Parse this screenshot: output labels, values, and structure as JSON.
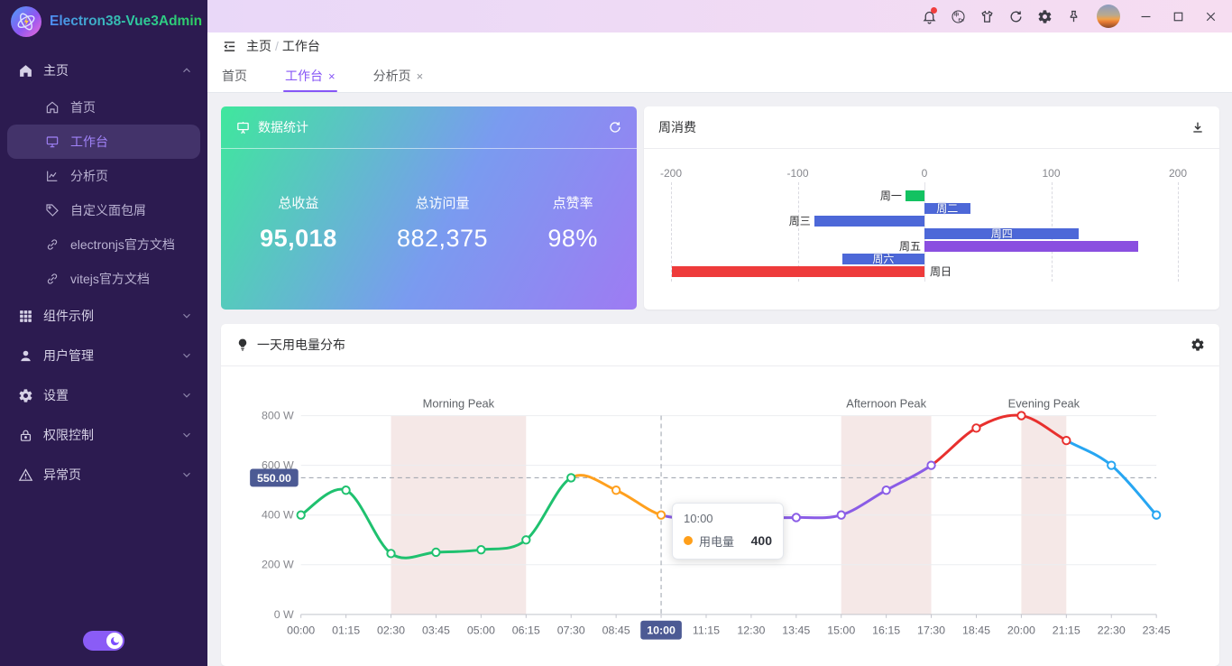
{
  "app": {
    "title": "Electron38-Vue3Admin"
  },
  "titlebar": {
    "icons": [
      {
        "id": "bell",
        "badge": true
      },
      {
        "id": "translate",
        "badge": false
      },
      {
        "id": "theme-shirt",
        "badge": false
      },
      {
        "id": "refresh",
        "badge": false
      },
      {
        "id": "settings",
        "badge": false
      },
      {
        "id": "pin",
        "badge": false
      }
    ],
    "window_controls": [
      "minimize",
      "maximize",
      "close"
    ]
  },
  "sidebar": {
    "groups": [
      {
        "id": "home",
        "label": "主页",
        "icon": "home-filled",
        "expanded": true,
        "children": [
          {
            "id": "overview",
            "label": "首页",
            "icon": "house",
            "active": false
          },
          {
            "id": "workbench",
            "label": "工作台",
            "icon": "monitor",
            "active": true
          },
          {
            "id": "analysis",
            "label": "分析页",
            "icon": "chart",
            "active": false
          },
          {
            "id": "custom-breadcrumb",
            "label": "自定义面包屑",
            "icon": "tag",
            "active": false
          },
          {
            "id": "electron-docs",
            "label": "electronjs官方文档",
            "icon": "link",
            "active": false
          },
          {
            "id": "vite-docs",
            "label": "vitejs官方文档",
            "icon": "link",
            "active": false
          }
        ]
      },
      {
        "id": "components",
        "label": "组件示例",
        "icon": "grid",
        "expanded": false,
        "children": []
      },
      {
        "id": "users",
        "label": "用户管理",
        "icon": "user",
        "expanded": false,
        "children": []
      },
      {
        "id": "settings",
        "label": "设置",
        "icon": "gear",
        "expanded": false,
        "children": []
      },
      {
        "id": "permissions",
        "label": "权限控制",
        "icon": "lock",
        "expanded": false,
        "children": []
      },
      {
        "id": "exception",
        "label": "异常页",
        "icon": "warning",
        "expanded": false,
        "children": []
      }
    ],
    "theme_toggle_on": true
  },
  "breadcrumb": {
    "items": [
      "主页",
      "工作台"
    ],
    "separator": "/"
  },
  "tabs": [
    {
      "id": "overview",
      "label": "首页",
      "closable": false,
      "active": false
    },
    {
      "id": "workbench",
      "label": "工作台",
      "closable": true,
      "active": true
    },
    {
      "id": "analysis",
      "label": "分析页",
      "closable": true,
      "active": false
    }
  ],
  "stats_card": {
    "title": "数据统计",
    "items": [
      {
        "label": "总收益",
        "value": "95,018",
        "bold": true
      },
      {
        "label": "总访问量",
        "value": "882,375",
        "bold": false
      },
      {
        "label": "点赞率",
        "value": "98%",
        "bold": false
      }
    ]
  },
  "chart_data": [
    {
      "type": "bar",
      "title": "周消费",
      "orientation": "horizontal",
      "categories": [
        "周一",
        "周二",
        "周三",
        "周四",
        "周五",
        "周六",
        "周日"
      ],
      "values": [
        -15,
        36,
        -87,
        122,
        169,
        -65,
        -199
      ],
      "colors": [
        "#12c261",
        "#4d68d8",
        "#4d68d8",
        "#4d68d8",
        "#8a4fe0",
        "#4d68d8",
        "#ee3b3b"
      ],
      "label_positions": [
        "left",
        "inside",
        "left",
        "inside",
        "left",
        "inside",
        "right"
      ],
      "xlim": [
        -200,
        200
      ],
      "ticks": [
        -200,
        -100,
        0,
        100,
        200
      ],
      "grid": "dashed-vertical"
    },
    {
      "type": "line",
      "title": "一天用电量分布",
      "series_name": "用电量",
      "x": [
        "00:00",
        "01:15",
        "02:30",
        "03:45",
        "05:00",
        "06:15",
        "07:30",
        "08:45",
        "10:00",
        "11:15",
        "12:30",
        "13:45",
        "15:00",
        "16:15",
        "17:30",
        "18:45",
        "20:00",
        "21:15",
        "22:30",
        "23:45"
      ],
      "values": [
        400,
        500,
        245,
        250,
        260,
        300,
        550,
        500,
        400,
        390,
        390,
        390,
        400,
        500,
        600,
        750,
        800,
        700,
        600,
        400
      ],
      "ylim": [
        0,
        800
      ],
      "yticks": [
        "0 W",
        "200 W",
        "400 W",
        "600 W",
        "800 W"
      ],
      "segments": [
        {
          "from": 0,
          "to": 6,
          "color": "#1fc16f"
        },
        {
          "from": 6,
          "to": 8,
          "color": "#ffa01e"
        },
        {
          "from": 8,
          "to": 14,
          "color": "#8a5ce6"
        },
        {
          "from": 14,
          "to": 17,
          "color": "#e8302e"
        },
        {
          "from": 17,
          "to": 19,
          "color": "#27a6f2"
        }
      ],
      "point_colors": [
        "#1fc16f",
        "#1fc16f",
        "#1fc16f",
        "#1fc16f",
        "#1fc16f",
        "#1fc16f",
        "#1fc16f",
        "#ffa01e",
        "#ffa01e",
        "#8a5ce6",
        "#8a5ce6",
        "#8a5ce6",
        "#8a5ce6",
        "#8a5ce6",
        "#8a5ce6",
        "#e8302e",
        "#e8302e",
        "#e8302e",
        "#27a6f2",
        "#27a6f2"
      ],
      "bands": [
        {
          "from": 2,
          "to": 5,
          "label": "Morning Peak"
        },
        {
          "from": 12,
          "to": 14,
          "label": "Afternoon Peak"
        },
        {
          "from": 16,
          "to": 17,
          "label": "Evening Peak"
        }
      ],
      "band_color": "#f5e8e7",
      "mark_line_y": 550,
      "mark_line_label": "550.00",
      "highlight_x": "10:00",
      "badge_color": "#4c5a94",
      "tooltip": {
        "title": "10:00",
        "series": "用电量",
        "value": "400"
      },
      "legend_position": "none",
      "grid": "horizontal"
    }
  ]
}
